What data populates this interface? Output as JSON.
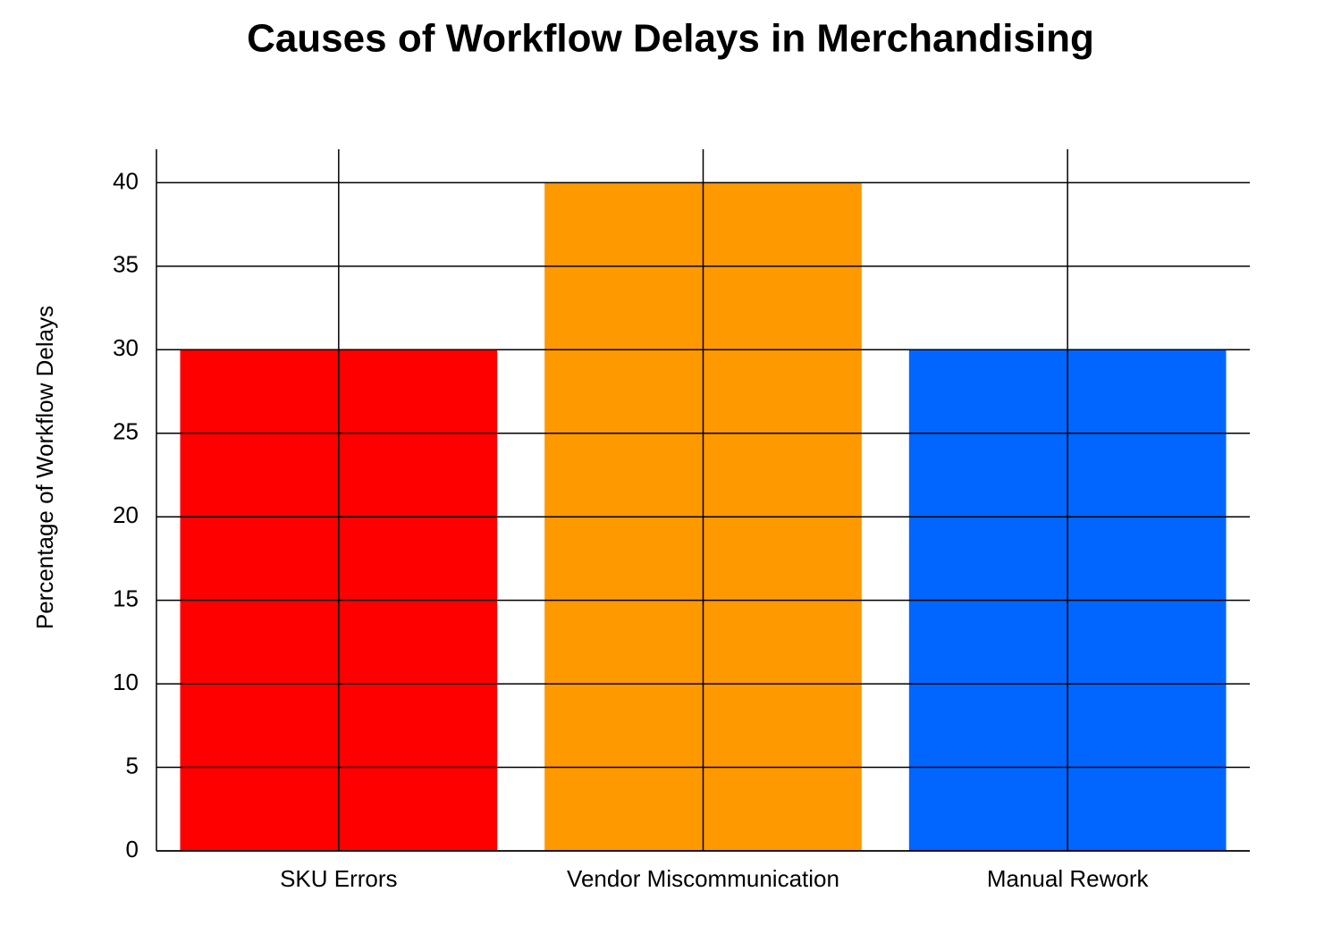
{
  "chart_data": {
    "type": "bar",
    "title": "Causes of Workflow Delays in Merchandising",
    "y_label": "Percentage of Workflow Delays",
    "categories": [
      "SKU Errors",
      "Vendor Miscommunication",
      "Manual Rework"
    ],
    "values": [
      30,
      40,
      30
    ],
    "colors": [
      "#ff0000",
      "#ff9900",
      "#0066ff"
    ],
    "ylim": [
      0,
      42
    ],
    "yticks": [
      0,
      5,
      10,
      15,
      20,
      25,
      30,
      35,
      40
    ],
    "grid": true
  }
}
